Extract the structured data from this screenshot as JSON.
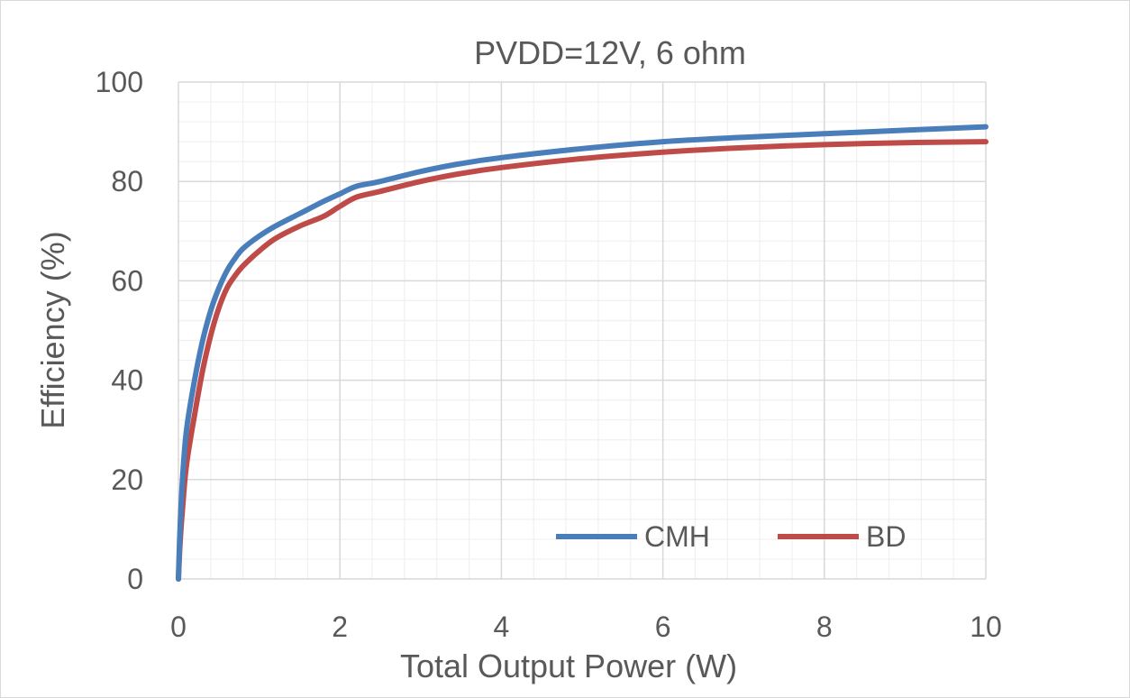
{
  "chart_data": {
    "type": "line",
    "title": "PVDD=12V, 6 ohm",
    "xlabel": "Total Output Power (W)",
    "ylabel": "Efficiency (%)",
    "xlim": [
      0,
      10
    ],
    "ylim": [
      0,
      100
    ],
    "x_ticks": [
      0,
      2,
      4,
      6,
      8,
      10
    ],
    "y_ticks": [
      0,
      20,
      40,
      60,
      80,
      100
    ],
    "x_minor_step": 0.4,
    "y_minor_step": 4,
    "grid": true,
    "legend_position": "bottom-right",
    "series": [
      {
        "name": "CMH",
        "color": "#4a7ebb",
        "points": [
          [
            0,
            0
          ],
          [
            0.02,
            10
          ],
          [
            0.05,
            20
          ],
          [
            0.1,
            30
          ],
          [
            0.2,
            40
          ],
          [
            0.3,
            48
          ],
          [
            0.4,
            54
          ],
          [
            0.5,
            58.5
          ],
          [
            0.6,
            62
          ],
          [
            0.7,
            64.5
          ],
          [
            0.8,
            66.5
          ],
          [
            1.0,
            69
          ],
          [
            1.2,
            71
          ],
          [
            1.5,
            73.5
          ],
          [
            1.8,
            76
          ],
          [
            2.0,
            77.5
          ],
          [
            2.2,
            79
          ],
          [
            2.5,
            80
          ],
          [
            3.0,
            82
          ],
          [
            3.5,
            83.6
          ],
          [
            4.0,
            84.8
          ],
          [
            5.0,
            86.6
          ],
          [
            6.0,
            88
          ],
          [
            7.0,
            88.9
          ],
          [
            8.0,
            89.6
          ],
          [
            9.0,
            90.3
          ],
          [
            10.0,
            91
          ]
        ]
      },
      {
        "name": "BD",
        "color": "#be4b48",
        "points": [
          [
            0,
            0
          ],
          [
            0.02,
            7
          ],
          [
            0.05,
            14
          ],
          [
            0.1,
            23
          ],
          [
            0.2,
            33
          ],
          [
            0.3,
            42
          ],
          [
            0.4,
            49
          ],
          [
            0.5,
            54.5
          ],
          [
            0.6,
            58.5
          ],
          [
            0.7,
            61
          ],
          [
            0.8,
            63
          ],
          [
            1.0,
            66
          ],
          [
            1.2,
            68.5
          ],
          [
            1.5,
            71
          ],
          [
            1.8,
            73
          ],
          [
            2.0,
            75
          ],
          [
            2.2,
            76.8
          ],
          [
            2.5,
            78
          ],
          [
            3.0,
            80
          ],
          [
            3.5,
            81.6
          ],
          [
            4.0,
            82.8
          ],
          [
            5.0,
            84.6
          ],
          [
            6.0,
            85.9
          ],
          [
            7.0,
            86.8
          ],
          [
            8.0,
            87.4
          ],
          [
            9.0,
            87.8
          ],
          [
            10.0,
            88
          ]
        ]
      }
    ]
  }
}
